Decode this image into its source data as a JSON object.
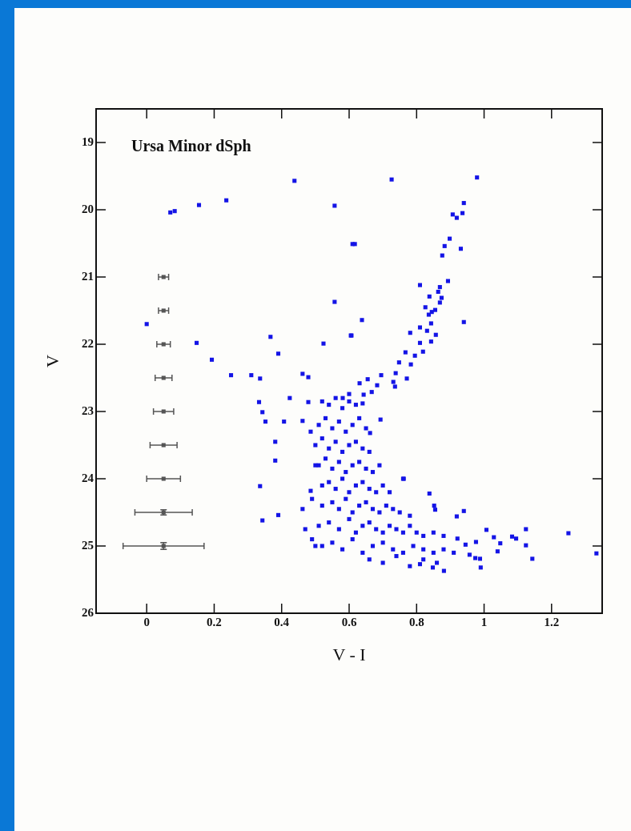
{
  "chart_data": {
    "type": "scatter",
    "title": "Ursa Minor dSph",
    "xlabel": "V - I",
    "ylabel": "V",
    "xlim": [
      -0.15,
      1.35
    ],
    "ylim": [
      26,
      18.5
    ],
    "xticks": [
      0,
      0.2,
      0.4,
      0.6,
      0.8,
      1,
      1.2
    ],
    "yticks": [
      19,
      20,
      21,
      22,
      23,
      24,
      25,
      26
    ],
    "grid": false,
    "legend": false,
    "marker": "square",
    "series": [
      {
        "color": "#1414e6",
        "x": [
          0.07,
          0.083,
          0.155,
          0.236,
          0.438,
          0.557,
          0.61,
          0.557,
          0,
          0.148,
          0.367,
          0.39,
          0.524,
          0.605,
          0.193,
          0.25,
          0.31,
          0.336,
          0.462,
          0.479,
          0.726,
          0.979,
          0.94,
          0.936,
          0.907,
          0.919,
          0.617,
          0.898,
          0.883,
          0.931,
          0.876,
          0.893,
          0.81,
          0.869,
          0.864,
          0.838,
          0.874,
          0.869,
          0.826,
          0.855,
          0.836,
          0.845,
          0.638,
          0.94,
          0.843,
          0.81,
          0.831,
          0.781,
          0.857,
          0.843,
          0.607,
          0.81,
          0.819,
          0.767,
          0.795,
          0.748,
          0.783,
          0.738,
          0.771,
          0.695,
          0.655,
          0.731,
          0.631,
          0.683,
          0.736,
          0.667,
          0.6,
          0.643,
          0.581,
          0.333,
          0.424,
          0.343,
          0.352,
          0.407,
          0.462,
          0.479,
          0.381,
          0.381,
          0.336,
          0.343,
          0.39,
          0.462,
          0.486,
          0.486,
          0.693,
          0.662,
          0.76,
          0.762,
          0.838,
          0.852,
          0.855,
          0.94,
          0.919,
          1.007,
          1.124,
          1.25,
          1.029,
          1.083,
          1.095,
          1.048,
          1.124,
          0.976,
          1.04,
          1.143,
          0.988,
          0.99,
          1.333,
          0.848,
          0.881,
          0.81,
          0.957,
          0.921,
          0.945,
          0.974,
          0.52,
          0.54,
          0.56,
          0.58,
          0.6,
          0.62,
          0.64,
          0.51,
          0.53,
          0.55,
          0.57,
          0.59,
          0.61,
          0.63,
          0.65,
          0.5,
          0.52,
          0.54,
          0.56,
          0.58,
          0.6,
          0.62,
          0.64,
          0.66,
          0.51,
          0.53,
          0.55,
          0.57,
          0.59,
          0.61,
          0.63,
          0.65,
          0.67,
          0.69,
          0.52,
          0.54,
          0.56,
          0.58,
          0.6,
          0.62,
          0.64,
          0.66,
          0.68,
          0.7,
          0.72,
          0.52,
          0.55,
          0.57,
          0.59,
          0.61,
          0.63,
          0.65,
          0.67,
          0.69,
          0.71,
          0.73,
          0.75,
          0.78,
          0.51,
          0.54,
          0.57,
          0.6,
          0.62,
          0.64,
          0.66,
          0.68,
          0.7,
          0.72,
          0.74,
          0.76,
          0.78,
          0.8,
          0.82,
          0.85,
          0.88,
          0.52,
          0.55,
          0.58,
          0.61,
          0.64,
          0.67,
          0.7,
          0.73,
          0.76,
          0.79,
          0.82,
          0.85,
          0.88,
          0.91,
          0.66,
          0.7,
          0.74,
          0.78,
          0.82,
          0.86,
          0.47,
          0.49,
          0.5,
          0.49,
          0.5
        ],
        "values": [
          20.04,
          20.02,
          19.93,
          19.86,
          19.57,
          19.94,
          20.51,
          21.37,
          21.7,
          21.98,
          21.89,
          22.14,
          21.99,
          21.87,
          22.23,
          22.46,
          22.46,
          22.51,
          22.44,
          22.49,
          19.55,
          19.52,
          19.9,
          20.05,
          20.07,
          20.12,
          20.51,
          20.43,
          20.54,
          20.58,
          20.68,
          21.06,
          21.12,
          21.15,
          21.22,
          21.29,
          21.31,
          21.38,
          21.45,
          21.49,
          21.56,
          21.52,
          21.64,
          21.67,
          21.69,
          21.75,
          21.8,
          21.83,
          21.86,
          21.96,
          21.87,
          21.98,
          22.11,
          22.12,
          22.17,
          22.27,
          22.3,
          22.43,
          22.51,
          22.46,
          22.52,
          22.56,
          22.58,
          22.61,
          22.63,
          22.71,
          22.74,
          22.75,
          22.8,
          22.86,
          22.8,
          23.01,
          23.15,
          23.15,
          23.14,
          22.86,
          23.45,
          23.73,
          24.11,
          24.62,
          24.54,
          24.45,
          23.3,
          24.18,
          23.12,
          23.32,
          24,
          24,
          24.22,
          24.4,
          24.46,
          24.48,
          24.56,
          24.76,
          24.75,
          24.81,
          24.87,
          24.86,
          24.89,
          24.96,
          24.99,
          24.94,
          25.08,
          25.19,
          25.19,
          25.32,
          25.11,
          25.32,
          25.37,
          25.27,
          25.13,
          24.89,
          24.98,
          25.18,
          22.85,
          22.9,
          22.8,
          22.95,
          22.85,
          22.9,
          22.88,
          23.2,
          23.1,
          23.25,
          23.15,
          23.3,
          23.2,
          23.1,
          23.25,
          23.5,
          23.4,
          23.55,
          23.45,
          23.6,
          23.5,
          23.45,
          23.55,
          23.6,
          23.8,
          23.7,
          23.85,
          23.75,
          23.9,
          23.8,
          23.75,
          23.85,
          23.9,
          23.8,
          24.1,
          24.05,
          24.15,
          24,
          24.2,
          24.1,
          24.05,
          24.15,
          24.2,
          24.1,
          24.2,
          24.4,
          24.35,
          24.45,
          24.3,
          24.5,
          24.4,
          24.35,
          24.45,
          24.5,
          24.4,
          24.45,
          24.5,
          24.55,
          24.7,
          24.65,
          24.75,
          24.6,
          24.8,
          24.7,
          24.65,
          24.75,
          24.8,
          24.7,
          24.75,
          24.8,
          24.7,
          24.8,
          24.85,
          24.8,
          24.85,
          25,
          24.95,
          25.05,
          24.9,
          25.1,
          25,
          24.95,
          25.05,
          25.1,
          25,
          25.05,
          25.1,
          25.05,
          25.1,
          25.2,
          25.25,
          25.15,
          25.3,
          25.2,
          25.25,
          24.75,
          24.9,
          23.8,
          24.3,
          25
        ]
      },
      {
        "color": "#555555",
        "x": [
          0.05,
          0.05,
          0.05,
          0.05,
          0.05,
          0.05,
          0.05,
          0.05,
          0.05
        ],
        "values": [
          21,
          21.5,
          22,
          22.5,
          23,
          23.5,
          24,
          24.5,
          25
        ],
        "xerrors": [
          0.015,
          0.015,
          0.02,
          0.025,
          0.03,
          0.04,
          0.05,
          0.085,
          0.12
        ],
        "errors": [
          null,
          null,
          null,
          null,
          null,
          null,
          null,
          0.04,
          0.05
        ]
      }
    ]
  }
}
